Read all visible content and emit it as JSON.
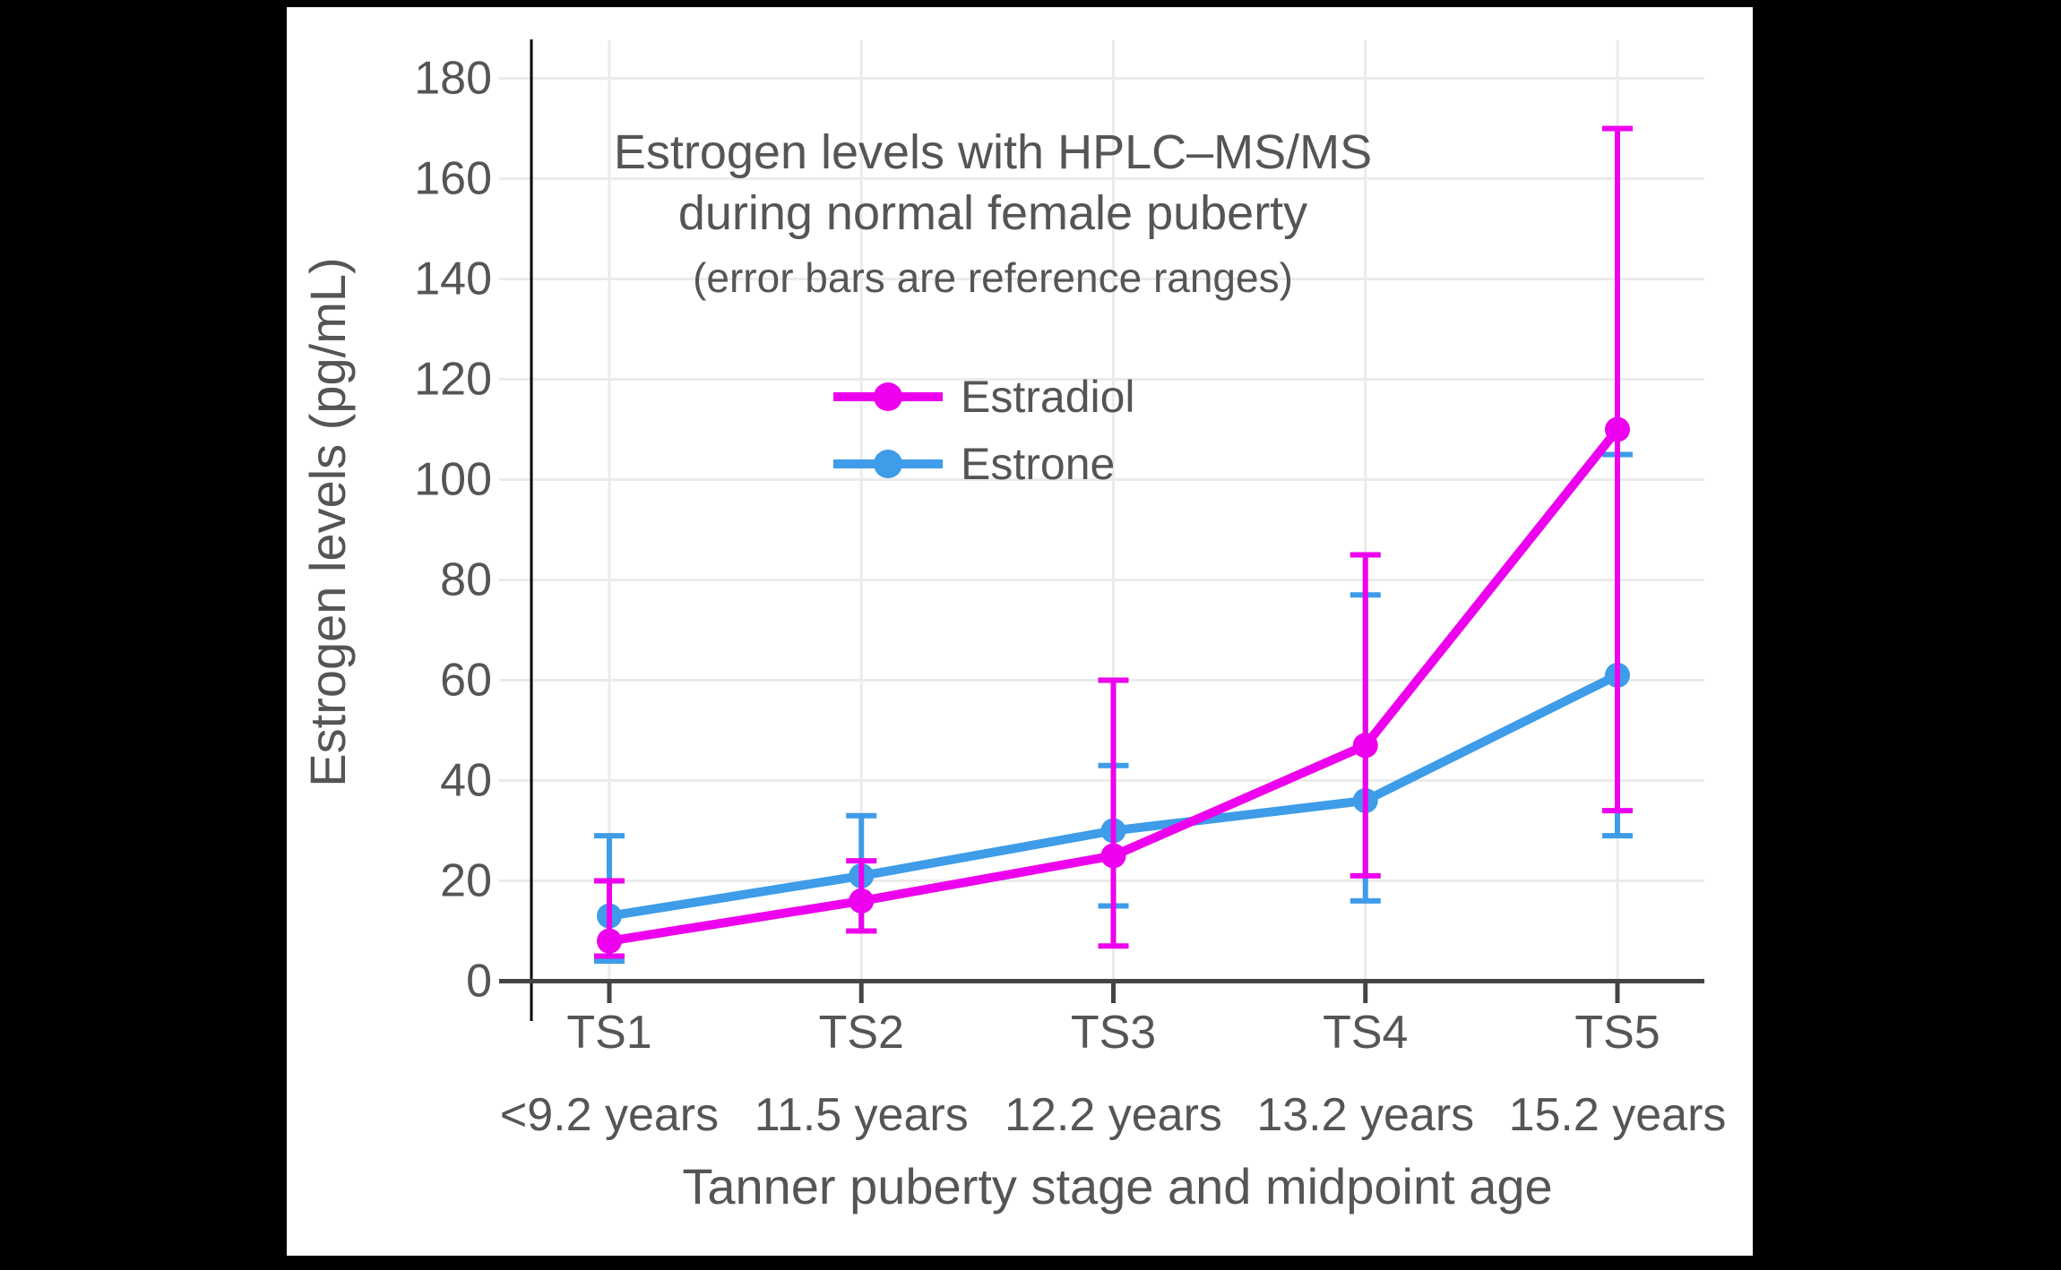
{
  "title": {
    "line1": "Estrogen levels with HPLC–MS/MS",
    "line2": "during normal female puberty",
    "subtitle": "(error bars are reference ranges)"
  },
  "colors": {
    "estradiol": "#ED00ED",
    "estrone": "#3E9CE8",
    "text": "#555555",
    "grid": "#EBEBEB",
    "axis_line": "#444444",
    "spine": "#000000",
    "canvas": "#FFFFFF",
    "frame": "#000000"
  },
  "chart_data": {
    "type": "line",
    "title": "Estrogen levels with HPLC–MS/MS during normal female puberty",
    "subtitle": "(error bars are reference ranges)",
    "xlabel": "Tanner puberty stage and midpoint age",
    "ylabel": "Estrogen levels (pg/mL)",
    "categories": [
      "TS1",
      "TS2",
      "TS3",
      "TS4",
      "TS5"
    ],
    "category_sublabels": [
      "<9.2 years",
      "11.5 years",
      "12.2 years",
      "13.2 years",
      "15.2 years"
    ],
    "y_ticks": [
      0,
      20,
      40,
      60,
      80,
      100,
      120,
      140,
      160,
      180
    ],
    "ylim": [
      0,
      187
    ],
    "grid": true,
    "legend_position": "upper-left-inside",
    "series": [
      {
        "name": "Estradiol",
        "color": "#ED00ED",
        "values": [
          8,
          16,
          25,
          47,
          110
        ],
        "error_low": [
          5,
          10,
          7,
          21,
          34
        ],
        "error_high": [
          20,
          24,
          60,
          85,
          170
        ]
      },
      {
        "name": "Estrone",
        "color": "#3E9CE8",
        "values": [
          13,
          21,
          30,
          36,
          61
        ],
        "error_low": [
          4,
          10,
          15,
          16,
          29
        ],
        "error_high": [
          29,
          33,
          43,
          77,
          105
        ]
      }
    ]
  }
}
